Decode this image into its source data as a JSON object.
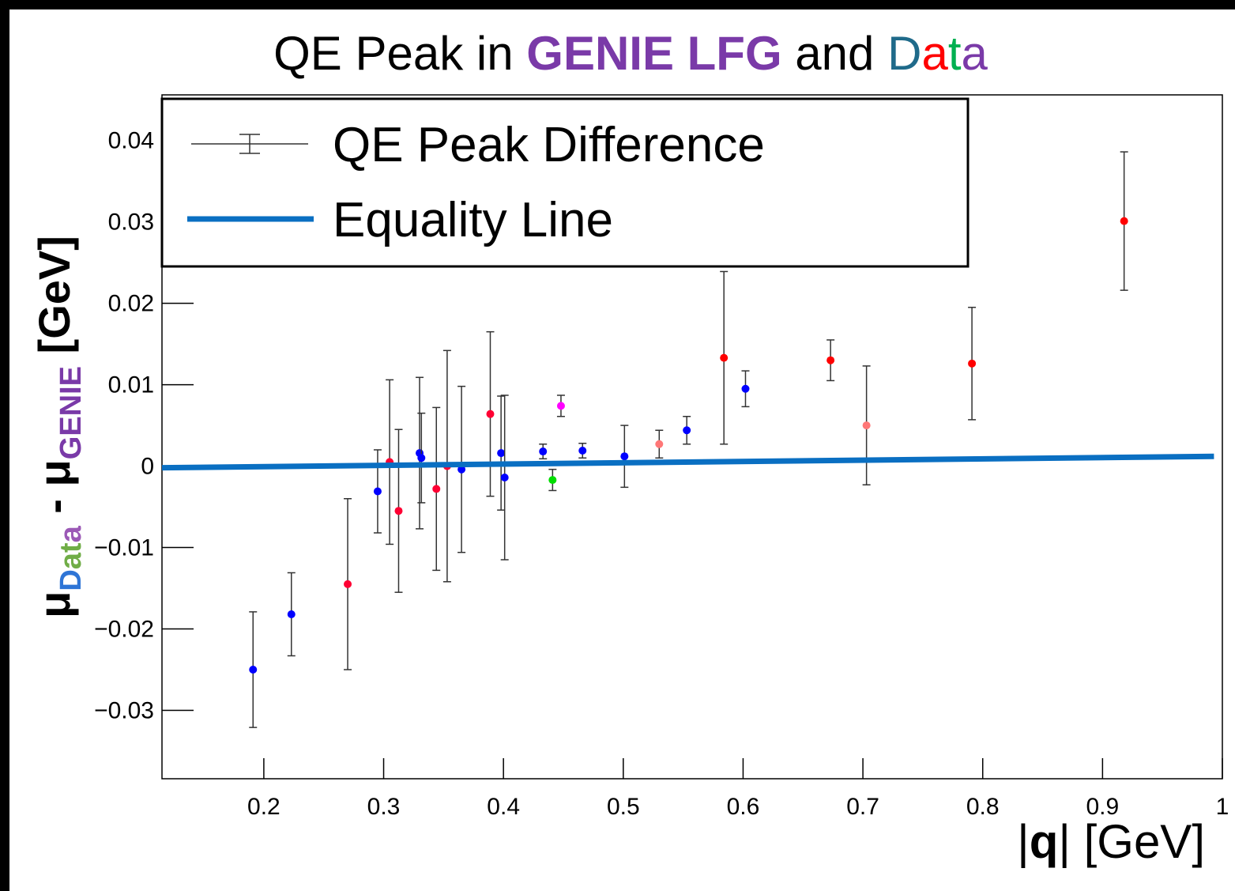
{
  "chart_data": {
    "type": "scatter",
    "title_parts": [
      {
        "text": "QE Peak in ",
        "color": "#000000",
        "bold": false
      },
      {
        "text": "GENIE LFG",
        "color": "#7a3aa8",
        "bold": true
      },
      {
        "text": " and ",
        "color": "#000000",
        "bold": false
      },
      {
        "text": "D",
        "color": "#1f6a8a",
        "bold": false
      },
      {
        "text": "a",
        "color": "#ff0000",
        "bold": false
      },
      {
        "text": "t",
        "color": "#00b050",
        "bold": false
      },
      {
        "text": "a",
        "color": "#7a3aa8",
        "bold": false
      }
    ],
    "ylabel_parts": [
      {
        "text": "μ",
        "color": "#000000",
        "sub": false
      },
      {
        "text": "D",
        "color": "#2e75d6",
        "sub": true
      },
      {
        "text": "a",
        "color": "#70ad47",
        "sub": true
      },
      {
        "text": "t",
        "color": "#70ad47",
        "sub": true
      },
      {
        "text": "a",
        "color": "#9b59b6",
        "sub": true
      },
      {
        "text": " - μ",
        "color": "#000000",
        "sub": false
      },
      {
        "text": "GENIE",
        "color": "#7a3aa8",
        "sub": true
      },
      {
        "text": " [GeV]",
        "color": "#000000",
        "sub": false
      }
    ],
    "xlabel_parts": [
      {
        "text": "|",
        "bold": false
      },
      {
        "text": "q",
        "bold": true
      },
      {
        "text": "| [GeV]",
        "bold": false
      }
    ],
    "xlim": [
      0.115,
      1.0
    ],
    "ylim": [
      -0.0384,
      0.0456
    ],
    "xticks": [
      0.2,
      0.3,
      0.4,
      0.5,
      0.6,
      0.7,
      0.8,
      0.9,
      1
    ],
    "yticks": [
      {
        "value": -0.03,
        "label": "−0.03"
      },
      {
        "value": -0.02,
        "label": "−0.02"
      },
      {
        "value": -0.01,
        "label": "−0.01"
      },
      0,
      0.01,
      0.02,
      0.03,
      0.04
    ],
    "legend": "top-left",
    "series": [
      {
        "name": "QE Peak Difference",
        "color": "#333333",
        "x": [
          0.191,
          0.223,
          0.27,
          0.295,
          0.305,
          0.3125,
          0.33,
          0.3315,
          0.344,
          0.353,
          0.365,
          0.389,
          0.398,
          0.401,
          0.433,
          0.441,
          0.448,
          0.466,
          0.501,
          0.53,
          0.553,
          0.584,
          0.602,
          0.673,
          0.703,
          0.791,
          0.918
        ],
        "values": [
          -0.025,
          -0.0182,
          -0.0145,
          -0.0031,
          0.0005,
          -0.0055,
          0.0016,
          0.001,
          -0.0028,
          0.0,
          -0.0004,
          0.0064,
          0.0016,
          -0.0014,
          0.0018,
          -0.0017,
          0.0074,
          0.0019,
          0.0012,
          0.0027,
          0.0044,
          0.0133,
          0.0095,
          0.013,
          0.005,
          0.0126,
          0.0301
        ],
        "errors": [
          0.0071,
          0.0051,
          0.0105,
          0.0051,
          0.0101,
          0.01,
          0.0093,
          0.0055,
          0.01,
          0.0142,
          0.0102,
          0.0101,
          0.007,
          0.0101,
          0.0009,
          0.0013,
          0.0013,
          0.0009,
          0.0038,
          0.0017,
          0.0017,
          0.0106,
          0.0022,
          0.0025,
          0.0073,
          0.0069,
          0.0085
        ],
        "point_colors": [
          "#0000ff",
          "#0000ff",
          "#ff0033",
          "#0000ff",
          "#ff0033",
          "#ff0033",
          "#0000ff",
          "#0000ff",
          "#ff0033",
          "#ff0033",
          "#0000ff",
          "#ff0033",
          "#0000ff",
          "#0000ff",
          "#0000ff",
          "#00dd00",
          "#ff00ff",
          "#0000ff",
          "#0000ff",
          "#ff7777",
          "#0000ff",
          "#ff0000",
          "#0000ff",
          "#ff0000",
          "#ff7777",
          "#ff0000",
          "#ff0000"
        ]
      },
      {
        "name": "Equality Line",
        "color": "#0a6fc2",
        "line": true,
        "x": [
          0.115,
          0.993
        ],
        "values": [
          -0.0002,
          0.0012
        ]
      }
    ]
  }
}
